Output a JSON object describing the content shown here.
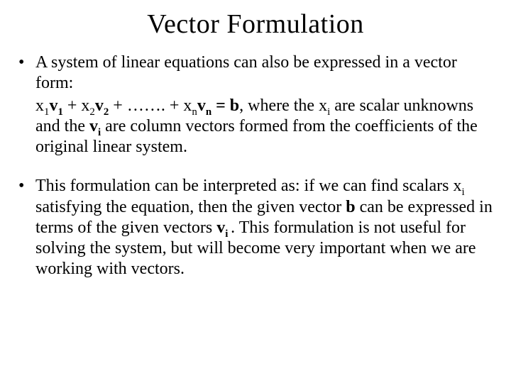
{
  "title": "Vector Formulation",
  "bullet1": {
    "intro": "A system of linear equations can also be expressed in a vector form:",
    "eq_pre": "x",
    "s1": "1",
    "v": "v",
    "plus": " + ",
    "s2": "2",
    "dots": " + ……. + ",
    "sn": "n",
    "eqb": " = b",
    "after1": ", where the x",
    "si": "i",
    "after2": " are scalar unknowns and the ",
    "vbold": "v",
    "after3": " are column vectors formed from the coefficients of the original linear system."
  },
  "bullet2": {
    "t1": "This formulation can be interpreted as: if we can find scalars x",
    "si": "i ",
    "t2": "satisfying the equation, then the given vector ",
    "b": "b",
    "t3": " can be expressed in terms of  the given vectors ",
    "v": "v",
    "vi": "i ",
    "t4": ". This formulation is not useful for solving the system, but will become very important when we are working with vectors."
  }
}
